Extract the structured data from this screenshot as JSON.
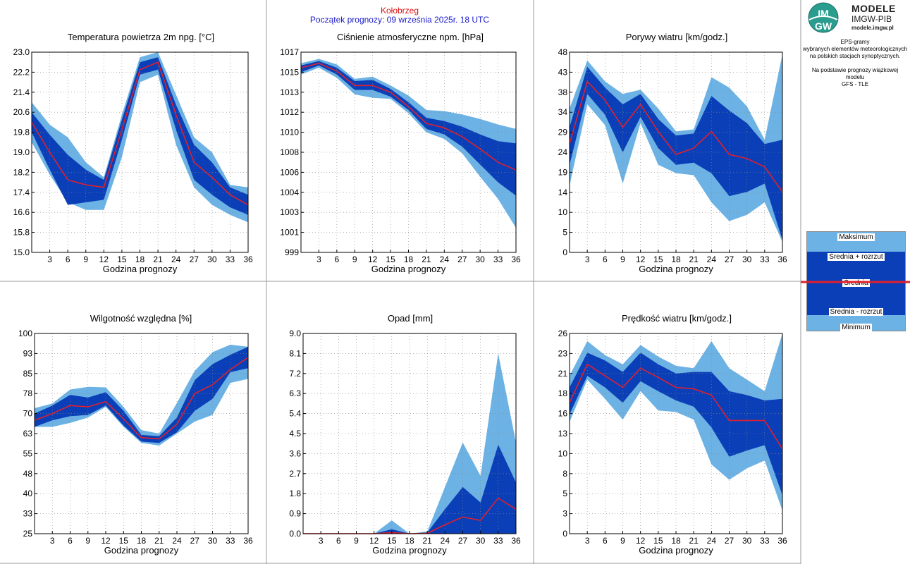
{
  "header": {
    "station": "Kołobrzeg",
    "start": "Początek prognozy: 09 września 2025r. 18 UTC"
  },
  "logo": {
    "title": "MODELE",
    "subtitle": "IMGW-PIB",
    "url": "modele.imgw.pl",
    "mark_top": "IM",
    "mark_bottom": "GW"
  },
  "side": {
    "line1": "EPS-gramy",
    "line2": "wybranych elementów meteorologicznych",
    "line3": "na polskich stacjach  synoptycznych.",
    "line4": "Na podstawie prognozy wiązkowej modelu",
    "line5": "GFS - TLE"
  },
  "legend": {
    "max": "Maksimum",
    "plus": "Średnia + rozrzut",
    "mean": "Średnia",
    "minus": "Średnia - rozrzut",
    "min": "Minimum"
  },
  "colors": {
    "light": "#6cb2e4",
    "dark": "#0a3fb8",
    "mean": "#e0202c",
    "station": "#dd1111",
    "start": "#1a1acc"
  },
  "chart_data": [
    {
      "type": "area",
      "title": "Temperatura powietrza 2m npg. [°C]",
      "xlabel": "Godzina prognozy",
      "x": [
        0,
        3,
        6,
        9,
        12,
        15,
        18,
        21,
        24,
        27,
        30,
        33,
        36
      ],
      "xticks": [
        "3",
        "6",
        "9",
        "12",
        "15",
        "18",
        "21",
        "24",
        "27",
        "30",
        "33",
        "36"
      ],
      "yticks": [
        "15.0",
        "15.8",
        "16.6",
        "17.4",
        "18.2",
        "19.0",
        "19.8",
        "20.6",
        "21.4",
        "22.2",
        "23.0"
      ],
      "ylim": [
        15.0,
        23.0
      ],
      "max": [
        21.0,
        20.1,
        19.6,
        18.6,
        18.0,
        20.5,
        22.8,
        23.0,
        21.3,
        19.6,
        19.0,
        17.7,
        17.6
      ],
      "plus": [
        20.6,
        19.7,
        18.9,
        18.3,
        17.9,
        20.3,
        22.6,
        22.8,
        20.9,
        19.3,
        18.6,
        17.6,
        17.3
      ],
      "mean": [
        20.2,
        19.0,
        17.9,
        17.7,
        17.6,
        19.9,
        22.3,
        22.6,
        20.5,
        18.6,
        18.0,
        17.3,
        16.9
      ],
      "minus": [
        19.8,
        18.3,
        16.9,
        17.0,
        17.1,
        19.5,
        22.1,
        22.3,
        19.9,
        17.9,
        17.3,
        16.8,
        16.5
      ],
      "min": [
        19.4,
        18.1,
        17.0,
        16.7,
        16.7,
        18.8,
        21.8,
        22.1,
        19.3,
        17.6,
        16.9,
        16.5,
        16.2
      ]
    },
    {
      "type": "area",
      "title": "Ciśnienie atmosferyczne npm. [hPa]",
      "xlabel": "Godzina prognozy",
      "x": [
        0,
        3,
        6,
        9,
        12,
        15,
        18,
        21,
        24,
        27,
        30,
        33,
        36
      ],
      "xticks": [
        "3",
        "6",
        "9",
        "12",
        "15",
        "18",
        "21",
        "24",
        "27",
        "30",
        "33",
        "36"
      ],
      "yticks": [
        "999",
        "1001",
        "1003",
        "1004",
        "1006",
        "1008",
        "1010",
        "1012",
        "1013",
        "1015",
        "1017"
      ],
      "ylim": [
        999,
        1017
      ],
      "max": [
        1016.0,
        1016.4,
        1015.9,
        1014.6,
        1014.8,
        1014.0,
        1013.1,
        1011.8,
        1011.7,
        1011.4,
        1011.0,
        1010.5,
        1010.1
      ],
      "plus": [
        1015.8,
        1016.2,
        1015.6,
        1014.4,
        1014.5,
        1013.7,
        1012.5,
        1011.1,
        1010.8,
        1010.3,
        1009.6,
        1009.0,
        1008.8
      ],
      "mean": [
        1015.6,
        1016.0,
        1015.3,
        1014.0,
        1014.0,
        1013.4,
        1012.1,
        1010.6,
        1010.2,
        1009.4,
        1008.3,
        1007.1,
        1006.4
      ],
      "minus": [
        1015.2,
        1015.8,
        1015.0,
        1013.6,
        1013.6,
        1013.0,
        1011.8,
        1010.1,
        1009.6,
        1008.5,
        1006.9,
        1005.3,
        1004.1
      ],
      "min": [
        1015.0,
        1015.6,
        1014.7,
        1013.2,
        1012.9,
        1012.8,
        1011.5,
        1009.8,
        1009.2,
        1007.9,
        1005.8,
        1003.8,
        1001.2
      ]
    },
    {
      "type": "area",
      "title": "Porywy wiatru [km/godz.]",
      "xlabel": "Godzina prognozy",
      "x": [
        0,
        3,
        6,
        9,
        12,
        15,
        18,
        21,
        24,
        27,
        30,
        33,
        36
      ],
      "xticks": [
        "3",
        "6",
        "9",
        "12",
        "15",
        "18",
        "21",
        "24",
        "27",
        "30",
        "33",
        "36"
      ],
      "yticks": [
        "0",
        "5",
        "10",
        "14",
        "19",
        "24",
        "29",
        "34",
        "38",
        "43",
        "48"
      ],
      "ylim": [
        0,
        48
      ],
      "max": [
        34.5,
        46.0,
        41.0,
        38.0,
        39.0,
        34.5,
        29.0,
        29.5,
        42.0,
        39.5,
        35.0,
        27.0,
        47.5
      ],
      "plus": [
        30.0,
        44.5,
        39.5,
        35.5,
        38.0,
        32.0,
        28.0,
        28.5,
        37.5,
        34.0,
        31.0,
        26.0,
        27.0
      ],
      "mean": [
        26.0,
        41.0,
        36.5,
        30.0,
        35.5,
        29.0,
        23.5,
        25.0,
        29.0,
        23.5,
        22.5,
        20.5,
        14.5
      ],
      "minus": [
        21.0,
        38.0,
        33.0,
        24.0,
        32.5,
        25.0,
        21.0,
        21.5,
        19.0,
        13.5,
        14.5,
        16.5,
        3.0
      ],
      "min": [
        16.0,
        35.5,
        30.5,
        16.5,
        31.0,
        21.0,
        19.0,
        18.5,
        12.0,
        7.5,
        9.0,
        12.0,
        2.5
      ]
    },
    {
      "type": "area",
      "title": "Wilgotność względna [%]",
      "xlabel": "Godzina prognozy",
      "x": [
        0,
        3,
        6,
        9,
        12,
        15,
        18,
        21,
        24,
        27,
        30,
        33,
        36
      ],
      "xticks": [
        "3",
        "6",
        "9",
        "12",
        "15",
        "18",
        "21",
        "24",
        "27",
        "30",
        "33",
        "36"
      ],
      "yticks": [
        "25",
        "33",
        "40",
        "48",
        "55",
        "63",
        "70",
        "78",
        "85",
        "93",
        "100"
      ],
      "ylim": [
        25,
        100
      ],
      "max": [
        72.0,
        73.8,
        79.0,
        80.0,
        79.8,
        72.5,
        63.8,
        62.5,
        74.0,
        86.0,
        93.0,
        95.8,
        95.0
      ],
      "plus": [
        70.0,
        73.0,
        77.0,
        76.0,
        78.0,
        71.0,
        62.0,
        61.5,
        68.5,
        82.5,
        88.5,
        92.0,
        95.0
      ],
      "mean": [
        67.5,
        70.0,
        73.0,
        72.5,
        74.5,
        68.0,
        61.0,
        60.5,
        66.0,
        77.5,
        80.8,
        86.5,
        91.0
      ],
      "minus": [
        65.0,
        67.5,
        69.0,
        69.5,
        73.0,
        65.5,
        59.5,
        59.0,
        63.0,
        71.0,
        75.5,
        85.5,
        87.0
      ],
      "min": [
        65.0,
        65.0,
        66.5,
        68.5,
        72.5,
        65.0,
        59.0,
        58.0,
        62.5,
        67.0,
        69.5,
        81.5,
        83.0
      ]
    },
    {
      "type": "area",
      "title": "Opad [mm]",
      "xlabel": "Godzina prognozy",
      "x": [
        0,
        3,
        6,
        9,
        12,
        15,
        18,
        21,
        24,
        27,
        30,
        33,
        36
      ],
      "xticks": [
        "3",
        "6",
        "9",
        "12",
        "15",
        "18",
        "21",
        "24",
        "27",
        "30",
        "33",
        "36"
      ],
      "yticks": [
        "0.0",
        "0.9",
        "1.8",
        "2.7",
        "3.6",
        "4.5",
        "5.4",
        "6.3",
        "7.2",
        "8.1",
        "9.0"
      ],
      "ylim": [
        0,
        9.0
      ],
      "max": [
        0,
        0,
        0,
        0,
        0,
        0.6,
        0,
        0.1,
        2.1,
        4.1,
        2.6,
        8.1,
        4.1
      ],
      "plus": [
        0,
        0,
        0,
        0,
        0,
        0.2,
        0,
        0.05,
        1.1,
        2.1,
        1.4,
        4.0,
        2.3
      ],
      "mean": [
        0,
        0,
        0,
        0,
        0,
        0.05,
        0,
        0.02,
        0.4,
        0.75,
        0.6,
        1.6,
        1.1
      ],
      "minus": [
        0,
        0,
        0,
        0,
        0,
        0,
        0,
        0,
        0,
        0,
        0,
        0,
        0
      ],
      "min": [
        0,
        0,
        0,
        0,
        0,
        0,
        0,
        0,
        0,
        0,
        0,
        0,
        0
      ]
    },
    {
      "type": "area",
      "title": "Prędkość wiatru [km/godz.]",
      "xlabel": "Godzina prognozy",
      "x": [
        0,
        3,
        6,
        9,
        12,
        15,
        18,
        21,
        24,
        27,
        30,
        33,
        36
      ],
      "xticks": [
        "3",
        "6",
        "9",
        "12",
        "15",
        "18",
        "21",
        "24",
        "27",
        "30",
        "33",
        "36"
      ],
      "yticks": [
        "0",
        "3",
        "5",
        "8",
        "10",
        "13",
        "16",
        "18",
        "21",
        "23",
        "26"
      ],
      "ylim": [
        0,
        26
      ],
      "max": [
        20.5,
        25.0,
        23.2,
        22.0,
        24.5,
        23.0,
        21.8,
        21.5,
        25.0,
        21.5,
        20.0,
        18.5,
        26.0
      ],
      "plus": [
        19.0,
        23.5,
        22.5,
        21.0,
        23.5,
        22.0,
        20.8,
        21.0,
        21.0,
        18.5,
        18.0,
        17.3,
        17.5
      ],
      "mean": [
        17.0,
        22.0,
        20.5,
        19.0,
        21.5,
        20.3,
        19.0,
        18.8,
        18.0,
        14.7,
        14.7,
        14.7,
        11.0
      ],
      "minus": [
        15.5,
        20.5,
        19.0,
        17.0,
        19.8,
        18.5,
        17.3,
        16.5,
        13.8,
        10.0,
        10.8,
        11.5,
        5.0
      ],
      "min": [
        14.5,
        20.0,
        17.5,
        14.8,
        18.5,
        16.0,
        15.8,
        14.8,
        9.0,
        7.0,
        8.5,
        9.5,
        3.0
      ]
    }
  ]
}
